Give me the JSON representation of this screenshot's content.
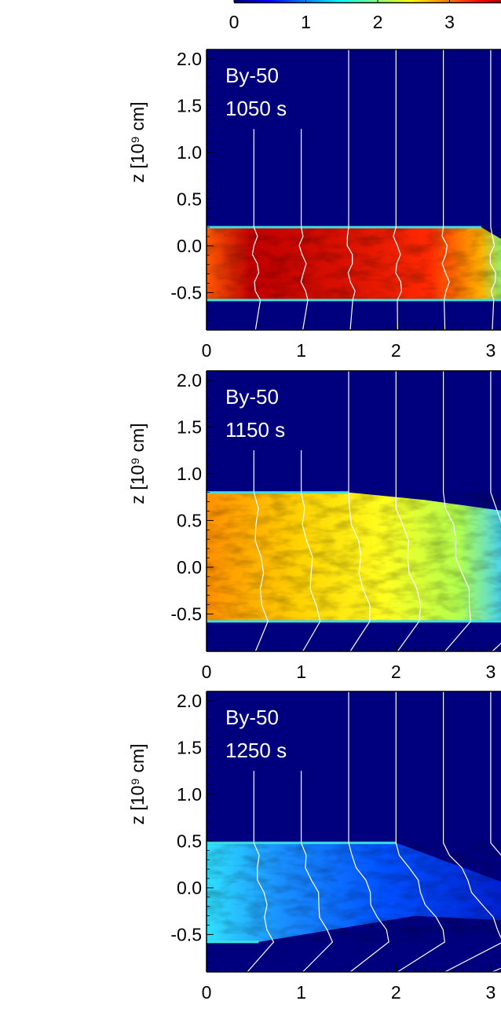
{
  "colorbar": {
    "tick_labels": [
      "0",
      "1",
      "2",
      "3"
    ],
    "gradient_colors": [
      "#00007f",
      "#0000ff",
      "#007fff",
      "#00ffff",
      "#7fff7f",
      "#ffff00",
      "#ff7f00",
      "#ff0000",
      "#7f0000"
    ]
  },
  "colors": {
    "background": "#00007f",
    "field_line": "#ffffff"
  },
  "chart_data": [
    {
      "type": "heatmap",
      "label": "By-50",
      "time": "1050 s",
      "ylabel": "z [10⁹ cm]",
      "xlabel": "",
      "xlim": [
        0,
        3.15
      ],
      "ylim": [
        -0.9,
        2.1
      ],
      "x_ticks": [
        "0",
        "1",
        "2",
        "3"
      ],
      "y_ticks": [
        "2.0",
        "1.5",
        "1.0",
        "0.5",
        "0.0",
        "-0.5"
      ],
      "slab": {
        "top": 0.2,
        "bottom": -0.58,
        "level": "high"
      },
      "field_line_x": [
        0.5,
        1.0,
        1.5,
        2.0,
        2.5,
        3.0
      ]
    },
    {
      "type": "heatmap",
      "label": "By-50",
      "time": "1150 s",
      "ylabel": "z [10⁹ cm]",
      "xlabel": "",
      "xlim": [
        0,
        3.15
      ],
      "ylim": [
        -0.9,
        2.1
      ],
      "x_ticks": [
        "0",
        "1",
        "2",
        "3"
      ],
      "y_ticks": [
        "2.0",
        "1.5",
        "1.0",
        "0.5",
        "0.0",
        "-0.5"
      ],
      "slab": {
        "top": 0.8,
        "bottom": -0.58,
        "level": "mid"
      },
      "field_line_x": [
        0.5,
        1.0,
        1.5,
        2.0,
        2.5,
        3.0
      ]
    },
    {
      "type": "heatmap",
      "label": "By-50",
      "time": "1250 s",
      "ylabel": "z [10⁹ cm]",
      "xlabel": "",
      "xlim": [
        0,
        3.15
      ],
      "ylim": [
        -0.9,
        2.1
      ],
      "x_ticks": [
        "0",
        "1",
        "2",
        "3"
      ],
      "y_ticks": [
        "2.0",
        "1.5",
        "1.0",
        "0.5",
        "0.0",
        "-0.5"
      ],
      "slab": {
        "top": 0.48,
        "bottom": -0.58,
        "level": "low"
      },
      "field_line_x": [
        0.5,
        1.0,
        1.5,
        2.0,
        2.5,
        3.0
      ]
    }
  ]
}
